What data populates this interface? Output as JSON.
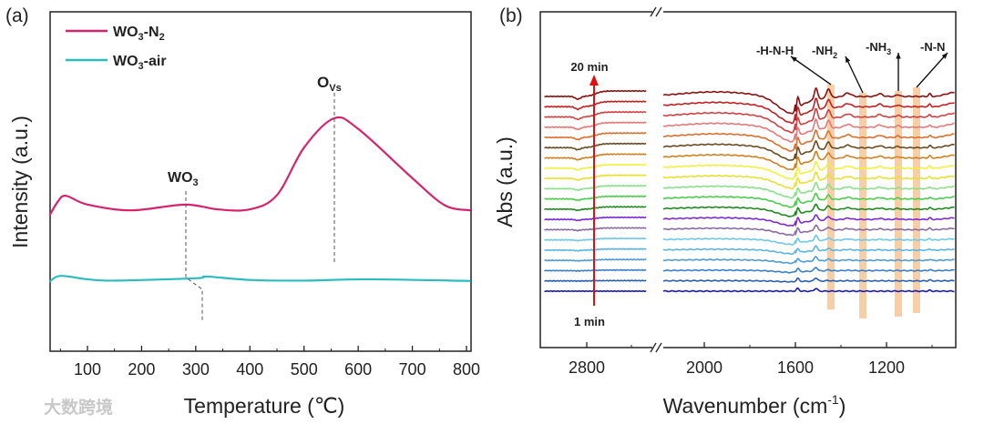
{
  "watermark": "大数跨境",
  "chart_data": [
    {
      "panel_label": "(a)",
      "type": "line",
      "xlabel": "Temperature (℃)",
      "ylabel": "Intensity (a.u.)",
      "xlim": [
        30,
        808
      ],
      "ylim": [
        0,
        1
      ],
      "xticks": [
        100,
        200,
        300,
        400,
        500,
        600,
        700,
        800
      ],
      "xtick_labels": [
        "100",
        "200",
        "300",
        "400",
        "500",
        "600",
        "700",
        "800"
      ],
      "legend": {
        "placement": "top-left",
        "entries": [
          {
            "main": "WO",
            "sub": "3",
            "rest": "-N",
            "sub2": "2"
          },
          {
            "main": "WO",
            "sub": "3",
            "rest": "-air",
            "sub2": ""
          }
        ]
      },
      "series": [
        {
          "name": "WO3-N2",
          "color": "#d4246e",
          "points": [
            [
              30,
              0.4
            ],
            [
              45,
              0.44
            ],
            [
              60,
              0.458
            ],
            [
              100,
              0.432
            ],
            [
              180,
              0.415
            ],
            [
              280,
              0.432
            ],
            [
              340,
              0.418
            ],
            [
              400,
              0.418
            ],
            [
              450,
              0.46
            ],
            [
              500,
              0.6
            ],
            [
              555,
              0.686
            ],
            [
              600,
              0.655
            ],
            [
              700,
              0.51
            ],
            [
              760,
              0.43
            ],
            [
              808,
              0.415
            ]
          ]
        },
        {
          "name": "WO3-air",
          "color": "#2bbdbd",
          "points": [
            [
              30,
              0.205
            ],
            [
              50,
              0.222
            ],
            [
              100,
              0.212
            ],
            [
              150,
              0.208
            ],
            [
              300,
              0.215
            ],
            [
              320,
              0.22
            ],
            [
              400,
              0.21
            ],
            [
              500,
              0.208
            ],
            [
              620,
              0.212
            ],
            [
              808,
              0.207
            ]
          ]
        }
      ],
      "annotations": [
        {
          "main": "WO",
          "sub": "3",
          "x": 284
        },
        {
          "main": "O",
          "sub": "Vs",
          "x": 555
        }
      ]
    },
    {
      "panel_label": "(b)",
      "type": "line",
      "xlabel_main": "Wavenumber (cm",
      "xlabel_sup": "-1",
      "xlabel_end": ")",
      "ylabel": "Abs (a.u.)",
      "axis_break": true,
      "xlim_left": [
        3000,
        2500
      ],
      "xlim_right": [
        2200,
        900
      ],
      "xticks": [
        2800,
        2000,
        1600,
        1200
      ],
      "xtick_labels": [
        "2800",
        "2000",
        "1600",
        "1200"
      ],
      "time_labels": {
        "start": "1 min",
        "end": "20 min"
      },
      "times_min": [
        1,
        2,
        3,
        4,
        5,
        6,
        7,
        8,
        9,
        10,
        11,
        12,
        13,
        14,
        15,
        16,
        17,
        18,
        19,
        20
      ],
      "trace_colors": [
        "#1b1bb0",
        "#2a5fb0",
        "#3a7fc8",
        "#4d9bd8",
        "#5bb5e0",
        "#6ec8e8",
        "#8a6aa0",
        "#7a2ad0",
        "#1e8a1e",
        "#4ccc4c",
        "#8ae08a",
        "#e8e030",
        "#f0f040",
        "#d08020",
        "#6a4a20",
        "#d87030",
        "#e87878",
        "#d04040",
        "#c02020",
        "#8a1010"
      ],
      "bands": [
        {
          "label_main": "-H-N-H",
          "label_sub": "",
          "wavenumber": 1444
        },
        {
          "label_main": "-NH",
          "label_sub": "2",
          "wavenumber": 1304
        },
        {
          "label_main": "-NH",
          "label_sub": "3",
          "wavenumber": 1148
        },
        {
          "label_main": "-N-N",
          "label_sub": "",
          "wavenumber": 1068
        }
      ],
      "band_color": "#f5c79a"
    }
  ]
}
